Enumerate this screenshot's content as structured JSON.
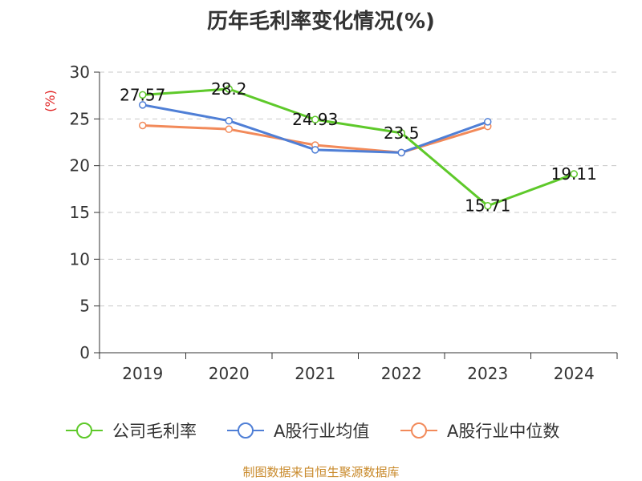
{
  "chart_data": {
    "type": "line",
    "title": "历年毛利率变化情况(%)",
    "ylabel": "(%)",
    "source": "制图数据来自恒生聚源数据库",
    "categories": [
      "2019",
      "2020",
      "2021",
      "2022",
      "2023",
      "2024"
    ],
    "ylim": [
      0,
      30
    ],
    "yticks": [
      "0",
      "5",
      "10",
      "15",
      "20",
      "25",
      "30"
    ],
    "grid": true,
    "legend_position": "bottom",
    "series": [
      {
        "name": "公司毛利率",
        "color": "#5ec92a",
        "values": [
          27.57,
          28.2,
          24.93,
          23.5,
          15.71,
          19.11
        ],
        "labels": [
          "27.57",
          "28.2",
          "24.93",
          "23.5",
          "15.71",
          "19.11"
        ]
      },
      {
        "name": "A股行业均值",
        "color": "#4f7fd6",
        "values": [
          26.5,
          24.8,
          21.7,
          21.4,
          24.7,
          null
        ]
      },
      {
        "name": "A股行业中位数",
        "color": "#f28a5a",
        "values": [
          24.3,
          23.9,
          22.2,
          21.4,
          24.2,
          null
        ]
      }
    ]
  }
}
